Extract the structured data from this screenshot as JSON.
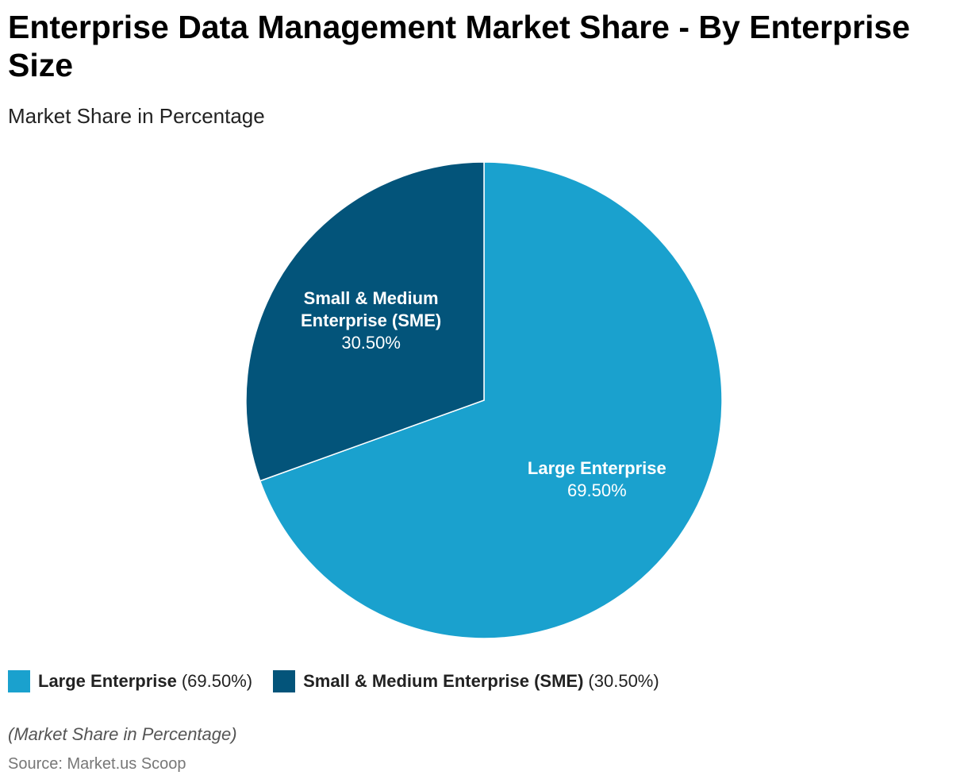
{
  "title": "Enterprise Data Management Market Share - By Enterprise Size",
  "subtitle": "Market Share in Percentage",
  "chart_data": {
    "type": "pie",
    "title": "Enterprise Data Management Market Share - By Enterprise Size",
    "subtitle": "Market Share in Percentage",
    "categories": [
      "Large Enterprise",
      "Small & Medium Enterprise (SME)"
    ],
    "values": [
      69.5,
      30.5
    ],
    "value_labels": [
      "69.50%",
      "30.50%"
    ],
    "slice_label_lines": [
      [
        "Large Enterprise"
      ],
      [
        "Small & Medium",
        "Enterprise (SME)"
      ]
    ],
    "colors": [
      "#1aa1ce",
      "#03547a"
    ],
    "legend_position": "bottom-left"
  },
  "legend": [
    {
      "name": "Large Enterprise",
      "value": "(69.50%)",
      "color": "#1aa1ce"
    },
    {
      "name": "Small & Medium Enterprise (SME)",
      "value": "(30.50%)",
      "color": "#03547a"
    }
  ],
  "footnote": "(Market Share in Percentage)",
  "source": "Source: Market.us Scoop"
}
